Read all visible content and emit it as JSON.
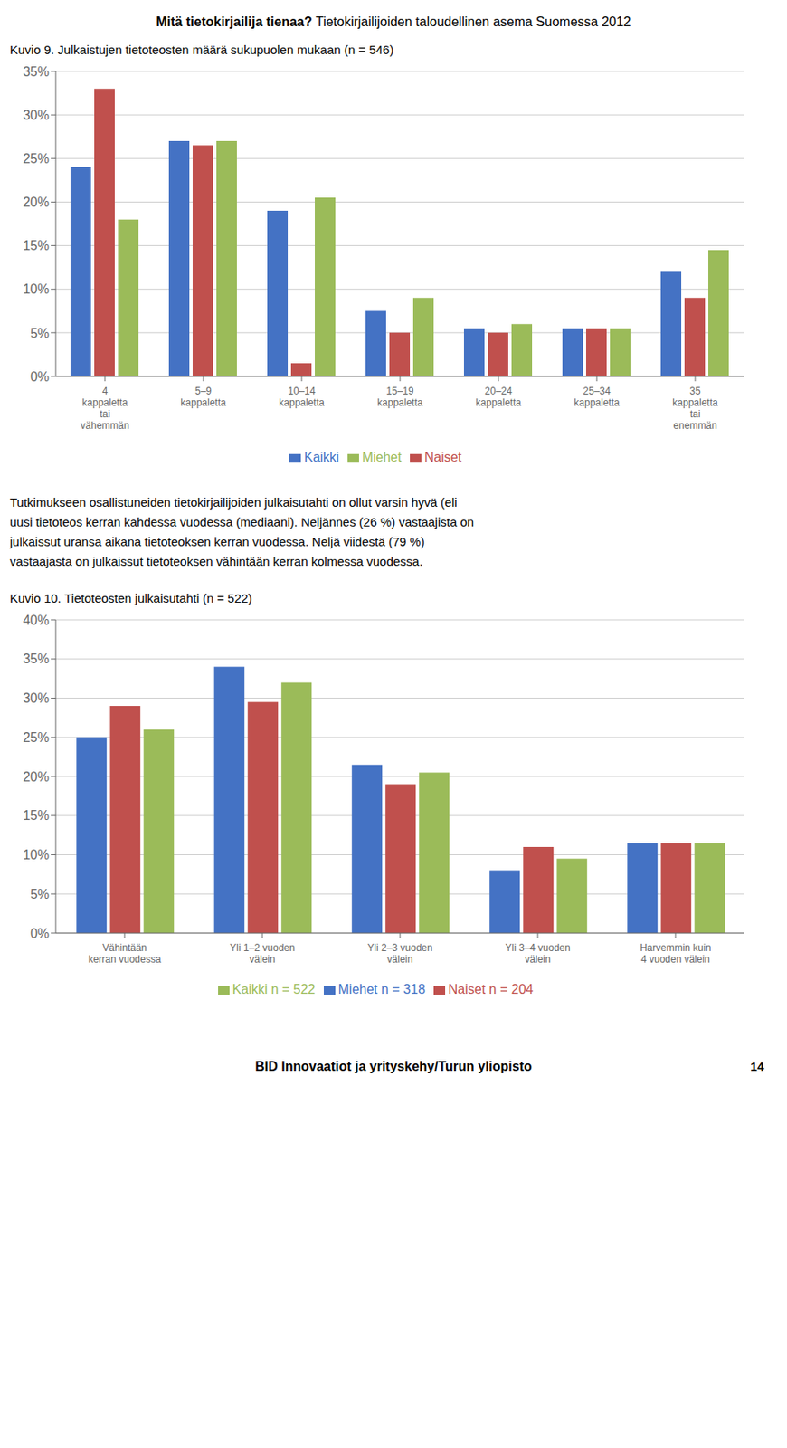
{
  "title": "Mitä tietokirjailija tienaa?",
  "subtitle": "Tietokirjailijoiden taloudellinen asema Suomessa 2012",
  "annotations": [
    "Tutkimukseen osallistuneiden tietokirjailijoiden julkaisutahti on ollut varsin hyvä (eli",
    "uusi tietoteos kerran kahdessa vuodessa (mediaani). Neljännes (26 %) vastaajista on",
    "julkaissut uransa aikana tietoteoksen kerran vuodessa. Neljä viidestä (79 %)",
    "vastaajasta on julkaissut tietoteoksen vähintään kerran kolmessa vuodessa.",
    "BID Innovaatiot ja yrityskehy/Turun yliopisto",
    "14"
  ],
  "chart_data": [
    {
      "type": "bar",
      "title": "Kuvio 9. Julkaistujen tietoteosten määrä sukupuolen mukaan (n = 546)",
      "categories": [
        "4\nkappaletta\ntai\nvähemmän",
        "5–9\nkappaletta",
        "10–14\nkappaletta",
        "15–19\nkappaletta",
        "20–24\nkappaletta",
        "25–34\nkappaletta",
        "35\nkappaletta\ntai\nenemmän"
      ],
      "series": [
        {
          "name": "Kaikki",
          "color": "#4472C4",
          "values": [
            24,
            27,
            19,
            7.5,
            5.5,
            5.5,
            12
          ]
        },
        {
          "name": "Naiset",
          "color": "#C0504D",
          "values": [
            33,
            26.5,
            1.5,
            5,
            5,
            5.5,
            9
          ]
        },
        {
          "name": "Miehet",
          "color": "#9BBB59",
          "values": [
            18,
            27,
            20.5,
            9,
            6,
            5.5,
            14.5
          ]
        }
      ],
      "ylim": [
        0,
        35
      ],
      "yticks": [
        {
          "value": 0,
          "label": "0%"
        },
        {
          "value": 5,
          "label": "5%"
        },
        {
          "value": 10,
          "label": "10%"
        },
        {
          "value": 15,
          "label": "15%"
        },
        {
          "value": 20,
          "label": "20%"
        },
        {
          "value": 25,
          "label": "25%"
        },
        {
          "value": 30,
          "label": "30%"
        },
        {
          "value": 35,
          "label": "35%"
        }
      ],
      "grid": true,
      "legend": "bottom"
    },
    {
      "type": "bar",
      "title": "Kuvio 10. Tietoteosten julkaisutahti (n = 522)",
      "categories": [
        "Vähintään\nkerran vuodessa",
        "Yli 1–2 vuoden\nvälein",
        "Yli 2–3 vuoden\nvälein",
        "Yli 3–4 vuoden\nvälein",
        "Harvemmin kuin\n4 vuoden välein"
      ],
      "series": [
        {
          "name": "Miehet n = 318",
          "color": "#4472C4",
          "values": [
            25,
            34,
            21.5,
            8,
            11.5
          ]
        },
        {
          "name": "Naiset n = 204",
          "color": "#C0504D",
          "values": [
            29,
            29.5,
            19,
            11,
            11.5
          ]
        },
        {
          "name": "Kaikki n = 522",
          "color": "#9BBB59",
          "values": [
            26,
            32,
            20.5,
            9.5,
            11.5
          ]
        }
      ],
      "ylim": [
        0,
        40
      ],
      "yticks": [
        {
          "value": 0,
          "label": "0%"
        },
        {
          "value": 5,
          "label": "5%"
        },
        {
          "value": 10,
          "label": "10%"
        },
        {
          "value": 15,
          "label": "15%"
        },
        {
          "value": 20,
          "label": "20%"
        },
        {
          "value": 25,
          "label": "25%"
        },
        {
          "value": 30,
          "label": "30%"
        },
        {
          "value": 35,
          "label": "35%"
        },
        {
          "value": 40,
          "label": "40%"
        }
      ],
      "grid": true,
      "legend": "bottom"
    }
  ]
}
